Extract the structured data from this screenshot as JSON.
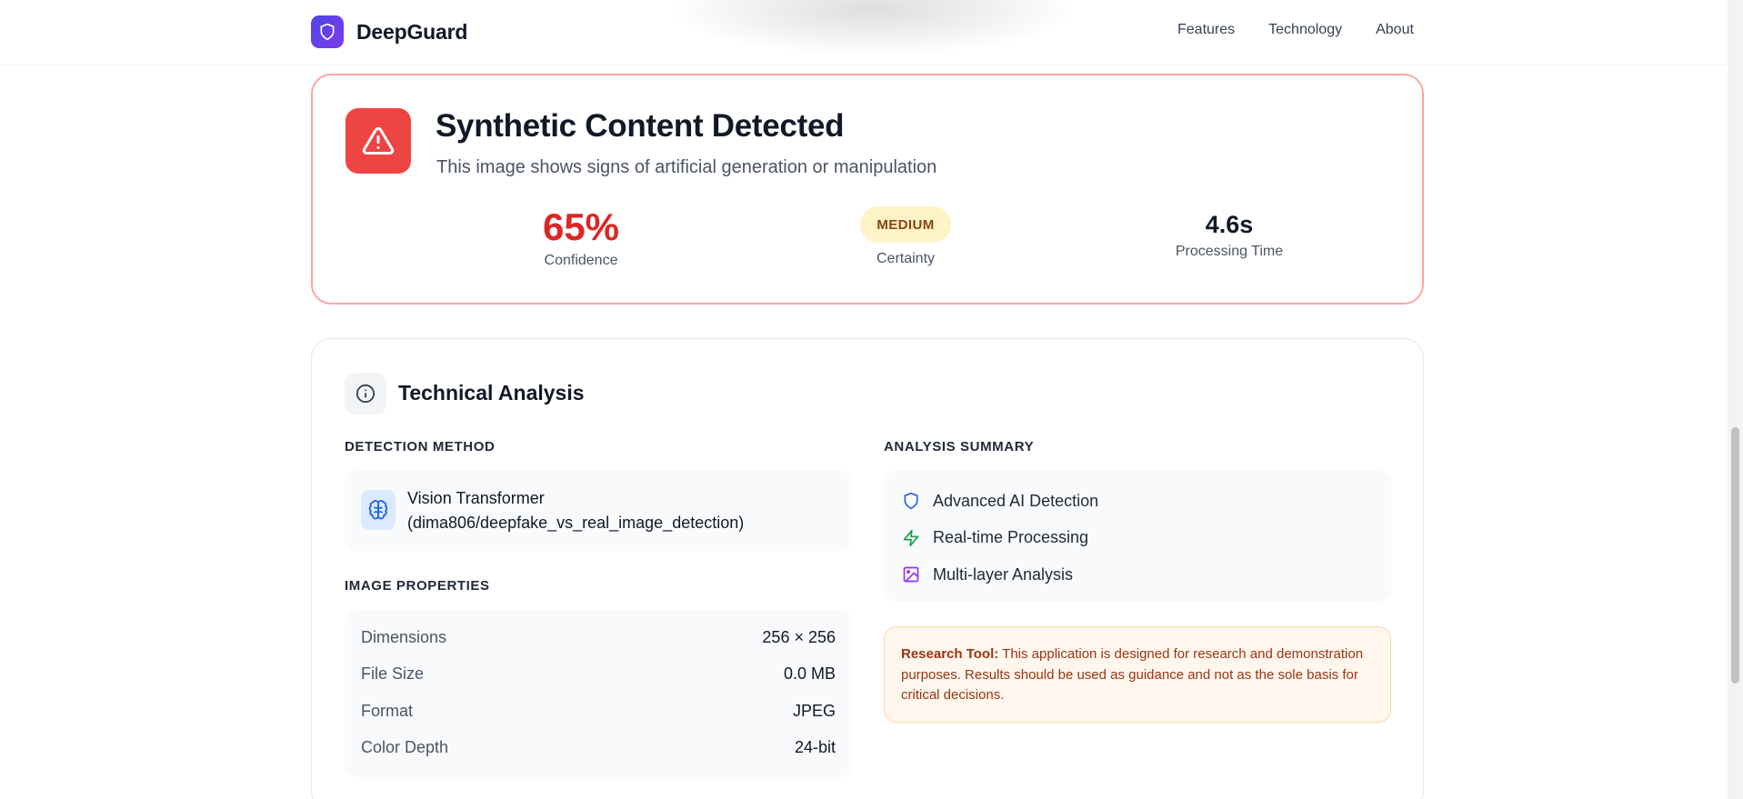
{
  "header": {
    "brand_name": "DeepGuard",
    "nav": [
      "Features",
      "Technology",
      "About"
    ]
  },
  "result": {
    "title": "Synthetic Content Detected",
    "subtitle": "This image shows signs of artificial generation or manipulation",
    "confidence_value": "65%",
    "confidence_label": "Confidence",
    "certainty_badge": "MEDIUM",
    "certainty_label": "Certainty",
    "time_value": "4.6s",
    "time_label": "Processing Time"
  },
  "analysis": {
    "title": "Technical Analysis",
    "detection_method_label": "DETECTION METHOD",
    "detection_method_line1": "Vision Transformer",
    "detection_method_line2": "(dima806/deepfake_vs_real_image_detection)",
    "image_properties_label": "IMAGE PROPERTIES",
    "properties": [
      {
        "label": "Dimensions",
        "value": "256 × 256"
      },
      {
        "label": "File Size",
        "value": "0.0 MB"
      },
      {
        "label": "Format",
        "value": "JPEG"
      },
      {
        "label": "Color Depth",
        "value": "24-bit"
      }
    ],
    "summary_label": "ANALYSIS SUMMARY",
    "summary_items": [
      {
        "label": "Advanced AI Detection",
        "icon": "shield-icon"
      },
      {
        "label": "Real-time Processing",
        "icon": "lightning-icon"
      },
      {
        "label": "Multi-layer Analysis",
        "icon": "image-icon"
      }
    ],
    "note_bold": "Research Tool:",
    "note_text": "This application is designed for research and demonstration purposes. Results should be used as guidance and not as the sole basis for critical decisions."
  },
  "colors": {
    "brand_gradient_start": "#4f46e5",
    "brand_gradient_end": "#7c3aed",
    "danger": "#ef4444",
    "confidence_text": "#dc2626",
    "badge_bg": "#fef3c7",
    "badge_text": "#92400e",
    "note_bg": "#fff7ed",
    "note_text": "#9a3412"
  }
}
